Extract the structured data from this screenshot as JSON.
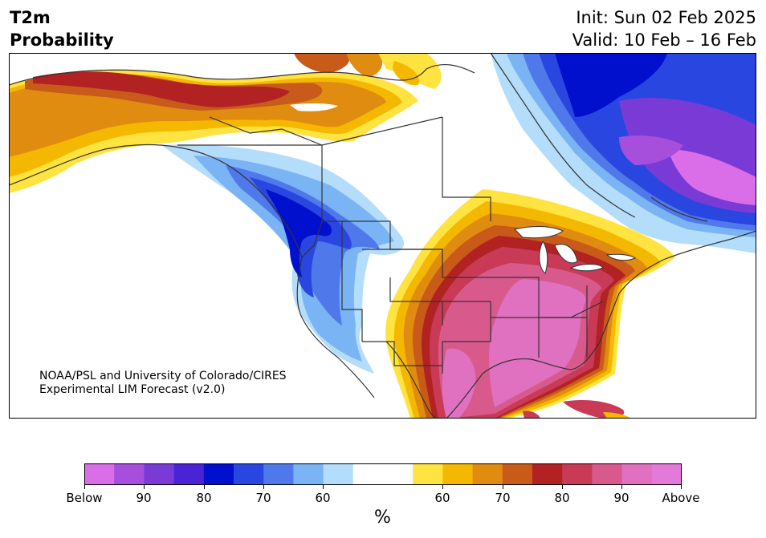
{
  "header": {
    "title_line1": "T2m",
    "title_line2": "Probability",
    "init": "Init: Sun 02 Feb 2025",
    "valid": "Valid: 10 Feb – 16 Feb"
  },
  "credit": {
    "line1": "NOAA/PSL and University of Colorado/CIRES",
    "line2": "Experimental LIM Forecast (v2.0)"
  },
  "colorbar": {
    "colors": [
      "#d96ee8",
      "#a64fdd",
      "#7a3ad6",
      "#4a24d4",
      "#0010cc",
      "#2a46e0",
      "#4f78ea",
      "#7ab4f4",
      "#b3ddfa",
      "#ffffff",
      "#ffffff",
      "#ffe340",
      "#f5b800",
      "#e08c10",
      "#c85a1a",
      "#b22222",
      "#c83a56",
      "#d85a8c",
      "#e070c0",
      "#e37ad8"
    ],
    "ticks": {
      "below": "Below",
      "b90": "90",
      "b80": "80",
      "b70": "70",
      "b60": "60",
      "a60": "60",
      "a70": "70",
      "a80": "80",
      "a90": "90",
      "above": "Above"
    },
    "unit": "%"
  },
  "map_colors": {
    "ocean": "#ffffff",
    "border": "#333333",
    "neutral": "#ffffff"
  }
}
